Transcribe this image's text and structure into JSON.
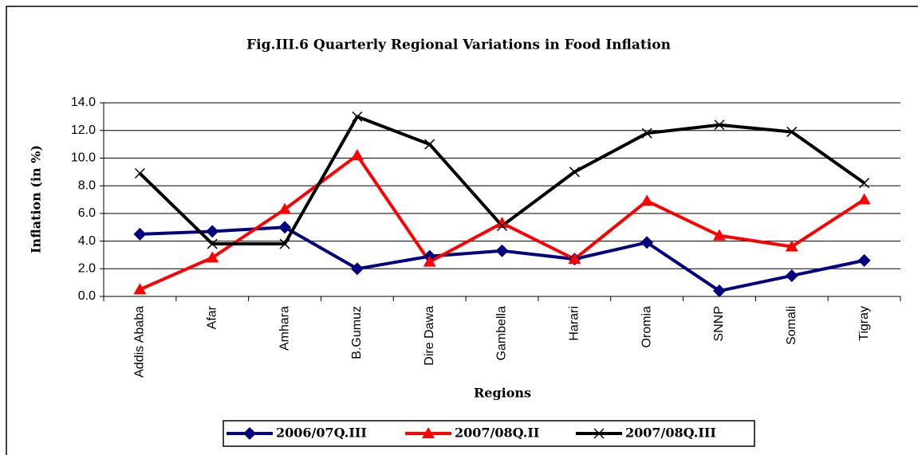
{
  "chart_data": {
    "type": "line",
    "title": "Fig.III.6 Quarterly Regional Variations in Food Inflation",
    "y_label": "Inflation (in %)",
    "x_label": "Regions",
    "categories": [
      "Addis Ababa",
      "Afar",
      "Amhara",
      "B.Gumuz",
      "Dire Dawa",
      "Gambella",
      "Harari",
      "Oromia",
      "SNNP",
      "Somali",
      "Tigray"
    ],
    "series": [
      {
        "name": "2006/07Q.III",
        "color": "#000080",
        "marker": "diamond",
        "values": [
          4.5,
          4.7,
          5.0,
          2.0,
          2.9,
          3.3,
          2.7,
          3.9,
          0.4,
          1.5,
          2.6
        ]
      },
      {
        "name": "2007/08Q.II",
        "color": "#ff0000",
        "marker": "triangle",
        "values": [
          0.5,
          2.8,
          6.3,
          10.2,
          2.5,
          5.3,
          2.7,
          6.9,
          4.4,
          3.6,
          7.0
        ]
      },
      {
        "name": "2007/08Q.III",
        "color": "#000000",
        "marker": "x",
        "values": [
          8.9,
          3.8,
          3.8,
          13.0,
          11.0,
          5.1,
          9.0,
          11.8,
          12.4,
          11.9,
          8.2
        ]
      }
    ],
    "ylim": [
      0,
      14
    ],
    "yticks": [
      {
        "value": 0,
        "label": "0.0"
      },
      {
        "value": 2,
        "label": "2.0"
      },
      {
        "value": 4,
        "label": "4.0"
      },
      {
        "value": 6,
        "label": "6.0"
      },
      {
        "value": 8,
        "label": "8.0"
      },
      {
        "value": 10,
        "label": "10.0"
      },
      {
        "value": 12,
        "label": "12.0"
      },
      {
        "value": 14,
        "label": "14.0"
      }
    ],
    "grid": true,
    "legend": "bottom"
  }
}
